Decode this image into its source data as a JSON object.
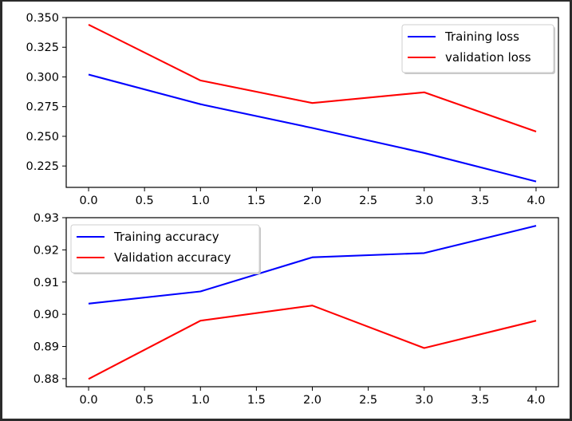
{
  "chart_data": [
    {
      "type": "line",
      "x": [
        0,
        1,
        2,
        3,
        4
      ],
      "series": [
        {
          "name": "Training loss",
          "color": "#0000ff",
          "values": [
            0.302,
            0.277,
            0.257,
            0.236,
            0.212
          ]
        },
        {
          "name": "validation loss",
          "color": "#ff0000",
          "values": [
            0.344,
            0.297,
            0.278,
            0.287,
            0.254
          ]
        }
      ],
      "xlim": [
        -0.2,
        4.2
      ],
      "ylim": [
        0.207,
        0.35
      ],
      "xticks": [
        0,
        0.5,
        1,
        1.5,
        2,
        2.5,
        3,
        3.5,
        4
      ],
      "xtick_labels": [
        "0.0",
        "0.5",
        "1.0",
        "1.5",
        "2.0",
        "2.5",
        "3.0",
        "3.5",
        "4.0"
      ],
      "yticks": [
        0.225,
        0.25,
        0.275,
        0.3,
        0.325,
        0.35
      ],
      "ytick_labels": [
        "0.225",
        "0.250",
        "0.275",
        "0.300",
        "0.325",
        "0.350"
      ],
      "legend_position": "top-right",
      "grid": false
    },
    {
      "type": "line",
      "x": [
        0,
        1,
        2,
        3,
        4
      ],
      "series": [
        {
          "name": "Training accuracy",
          "color": "#0000ff",
          "values": [
            0.9033,
            0.9071,
            0.9177,
            0.919,
            0.9275
          ]
        },
        {
          "name": "Validation accuracy",
          "color": "#ff0000",
          "values": [
            0.8799,
            0.898,
            0.9027,
            0.8895,
            0.898
          ]
        }
      ],
      "xlim": [
        -0.2,
        4.2
      ],
      "ylim": [
        0.8775,
        0.93
      ],
      "xticks": [
        0,
        0.5,
        1,
        1.5,
        2,
        2.5,
        3,
        3.5,
        4
      ],
      "xtick_labels": [
        "0.0",
        "0.5",
        "1.0",
        "1.5",
        "2.0",
        "2.5",
        "3.0",
        "3.5",
        "4.0"
      ],
      "yticks": [
        0.88,
        0.89,
        0.9,
        0.91,
        0.92,
        0.93
      ],
      "ytick_labels": [
        "0.88",
        "0.89",
        "0.90",
        "0.91",
        "0.92",
        "0.93"
      ],
      "legend_position": "top-left",
      "grid": false
    }
  ]
}
